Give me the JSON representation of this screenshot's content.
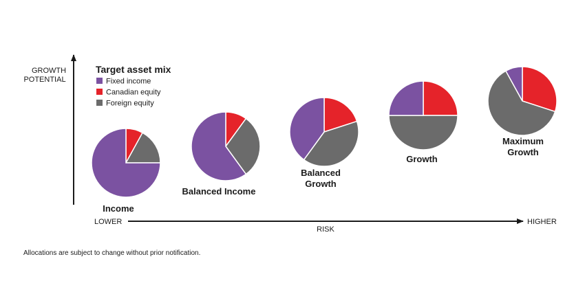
{
  "chart_data": {
    "type": "pie",
    "legend": {
      "title": "Target asset mix",
      "items": [
        {
          "label": "Fixed income",
          "color": "#7b52a1"
        },
        {
          "label": "Canadian equity",
          "color": "#e5232a"
        },
        {
          "label": "Foreign equity",
          "color": "#6b6b6b"
        }
      ]
    },
    "y_axis": {
      "label_line1": "GROWTH",
      "label_line2": "POTENTIAL"
    },
    "x_axis": {
      "low": "LOWER",
      "label": "RISK",
      "high": "HIGHER"
    },
    "pies": [
      {
        "name_lines": [
          "Income"
        ],
        "values": {
          "fixed_income": 75,
          "canadian_equity": 8,
          "foreign_equity": 17
        }
      },
      {
        "name_lines": [
          "Balanced Income"
        ],
        "values": {
          "fixed_income": 60,
          "canadian_equity": 10,
          "foreign_equity": 30
        }
      },
      {
        "name_lines": [
          "Balanced",
          "Growth"
        ],
        "values": {
          "fixed_income": 40,
          "canadian_equity": 20,
          "foreign_equity": 40
        }
      },
      {
        "name_lines": [
          "Growth"
        ],
        "values": {
          "fixed_income": 25,
          "canadian_equity": 25,
          "foreign_equity": 50
        }
      },
      {
        "name_lines": [
          "Maximum",
          "Growth"
        ],
        "values": {
          "fixed_income": 8,
          "canadian_equity": 30,
          "foreign_equity": 62
        }
      }
    ]
  },
  "footnote": "Allocations are subject to change without prior notification."
}
